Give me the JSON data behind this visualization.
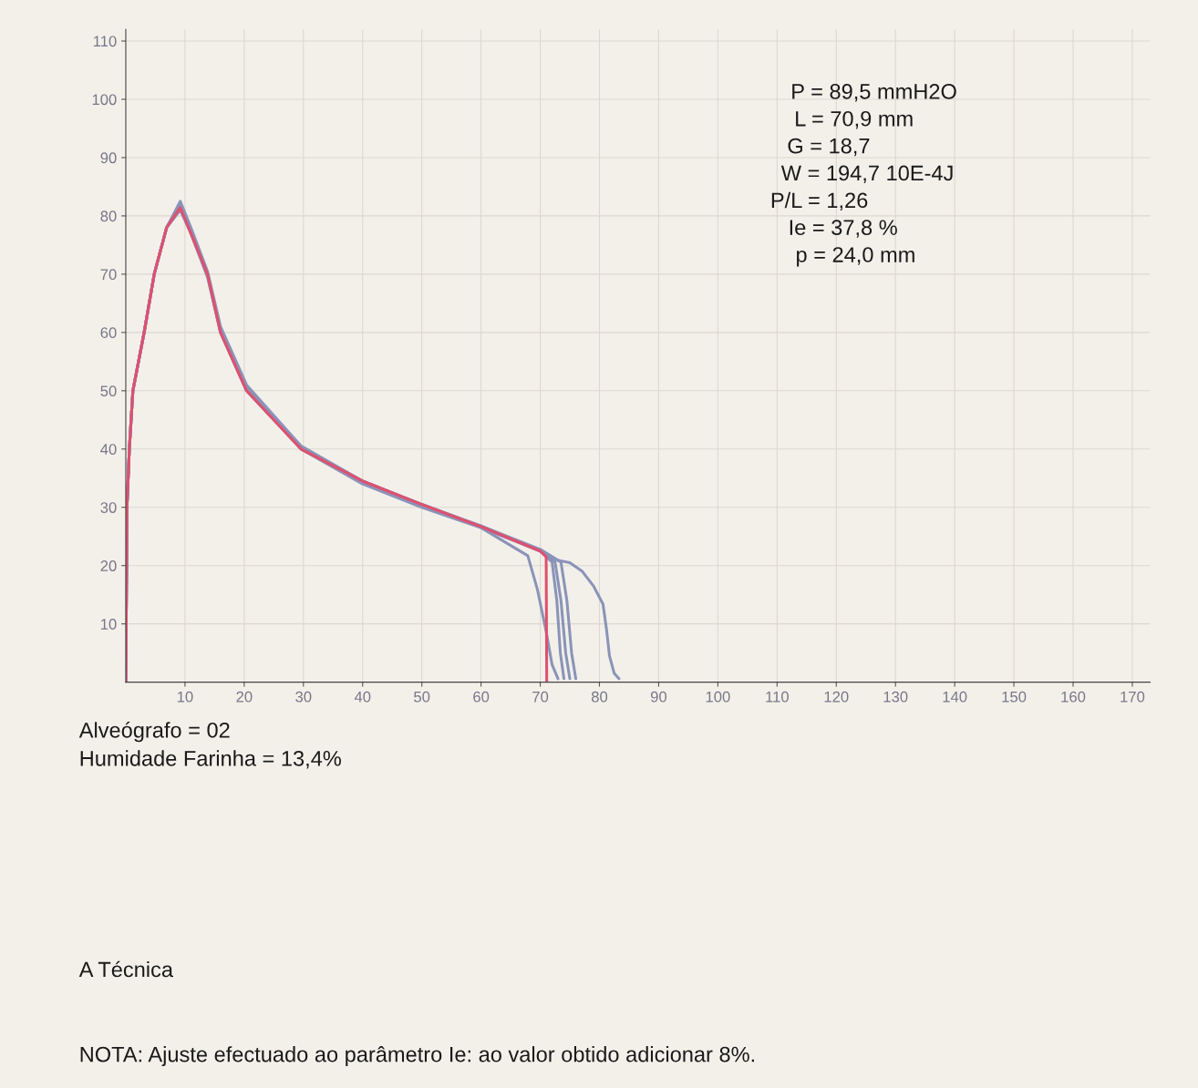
{
  "chart_data": {
    "type": "line",
    "xlim": [
      0,
      173
    ],
    "ylim": [
      0,
      112
    ],
    "xticks": [
      10,
      20,
      30,
      40,
      50,
      60,
      70,
      80,
      90,
      100,
      110,
      120,
      130,
      140,
      150,
      160,
      170
    ],
    "yticks": [
      10,
      20,
      30,
      40,
      50,
      60,
      70,
      80,
      90,
      100,
      110
    ],
    "grid": true,
    "marker": "none",
    "line_style": "solid",
    "series": [
      {
        "color": "#8a94b8",
        "x": [
          0,
          0.2,
          0.6,
          1.2,
          3.1,
          4.8,
          6.9,
          9.2,
          11,
          13.8,
          16,
          20.4,
          29.6,
          40,
          50,
          60,
          67.9,
          69.5,
          71,
          72,
          73
        ],
        "values": [
          0,
          30,
          40,
          50,
          60,
          70,
          78,
          82.5,
          78,
          70.5,
          61,
          51,
          40.5,
          34.5,
          30.5,
          26.5,
          21.7,
          16,
          8.7,
          3,
          0.6
        ]
      },
      {
        "color": "#8a94b8",
        "x": [
          0,
          0.2,
          0.6,
          1.2,
          3.1,
          4.8,
          6.9,
          9.2,
          11,
          13.8,
          16,
          20.4,
          29.6,
          40,
          50,
          60,
          70,
          72,
          72.8,
          73.4,
          74
        ],
        "values": [
          0,
          30,
          40,
          50,
          60,
          70,
          78,
          81.8,
          77.5,
          70,
          60.5,
          50.5,
          40,
          34.5,
          30.5,
          26.8,
          22.5,
          20.6,
          14,
          5,
          0.6
        ]
      },
      {
        "color": "#8a94b8",
        "x": [
          0,
          0.2,
          0.6,
          1.2,
          3.1,
          4.8,
          6.9,
          9.2,
          11,
          13.8,
          16,
          20.4,
          29.6,
          40,
          50,
          60,
          70,
          72.5,
          73.5,
          74.3,
          75
        ],
        "values": [
          0,
          30,
          40,
          50,
          60,
          70,
          78,
          81,
          77,
          69.5,
          60,
          50,
          40,
          34,
          30,
          26.5,
          22.5,
          20.6,
          14,
          5,
          0.6
        ]
      },
      {
        "color": "#8a94b8",
        "x": [
          0,
          0.2,
          0.6,
          1.2,
          3.1,
          4.8,
          6.9,
          9.2,
          11,
          13.8,
          16,
          20.4,
          29.6,
          40,
          50,
          60,
          70,
          73.5,
          74.5,
          75.3,
          76
        ],
        "values": [
          0,
          30,
          40,
          50,
          60,
          70,
          78,
          82,
          77.5,
          70,
          60.5,
          50.5,
          40.5,
          34.5,
          30.5,
          26.8,
          22.8,
          20.6,
          14,
          5,
          0.6
        ]
      },
      {
        "color": "#8a94b8",
        "x": [
          0,
          0.2,
          0.6,
          1.2,
          3.1,
          4.8,
          6.9,
          9.2,
          11,
          13.8,
          16,
          20.4,
          29.6,
          40,
          50,
          60,
          70,
          72.5,
          75,
          77.1,
          79,
          80.6,
          81.2,
          81.7,
          82.5,
          83.3
        ],
        "values": [
          0,
          30,
          40,
          50,
          60,
          70,
          78,
          81.5,
          77,
          70,
          60,
          50,
          40,
          34.2,
          30.2,
          26.6,
          22.6,
          21,
          20.5,
          19,
          16.5,
          13.4,
          9,
          4.5,
          1.5,
          0.6
        ]
      },
      {
        "color": "#e0506e",
        "x": [
          0,
          0.2,
          0.6,
          1.2,
          3.1,
          4.8,
          6.9,
          9.2,
          11,
          13.8,
          16,
          20.4,
          29.6,
          40,
          50,
          60,
          70,
          71,
          71.1
        ],
        "values": [
          0,
          30,
          40,
          50,
          60,
          70,
          78,
          81.4,
          77,
          70,
          60,
          50,
          40,
          34.5,
          30.5,
          26.7,
          22.5,
          21.5,
          0
        ]
      }
    ],
    "annotations": [
      "P = 89,5 mmH2O",
      "L = 70,9 mm",
      "G = 18,7",
      "W = 194,7 10E-4J",
      "P/L = 1,26",
      "Ie = 37,8 %",
      "p = 24,0 mm",
      "Alveógrafo = 02",
      "Humidade Farinha = 13,4%",
      "A Técnica",
      "NOTA: Ajuste efectuado ao parâmetro Ie: ao valor obtido adicionar 8%."
    ]
  }
}
